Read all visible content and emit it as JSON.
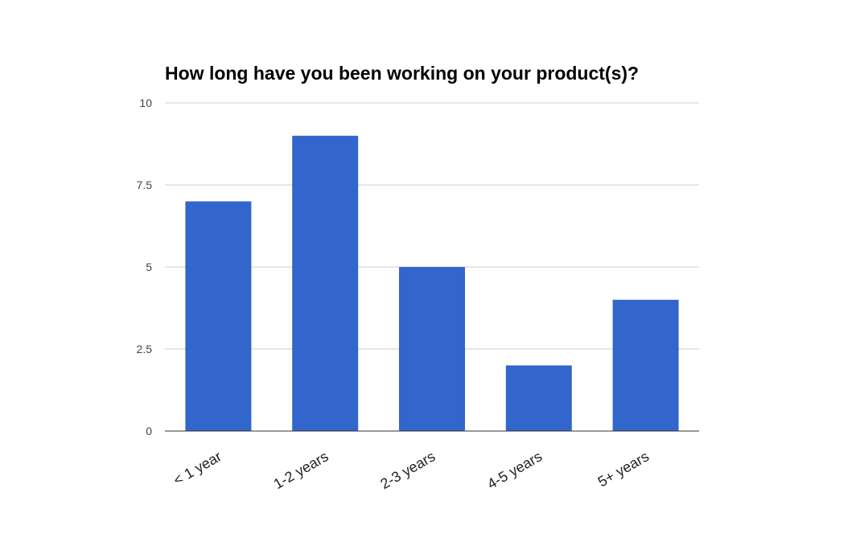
{
  "chart_data": {
    "type": "bar",
    "title": "How long have you been working on your product(s)?",
    "xlabel": "",
    "ylabel": "",
    "categories": [
      "< 1 year",
      "1-2 years",
      "2-3 years",
      "4-5 years",
      "5+ years"
    ],
    "values": [
      7,
      9,
      5,
      2,
      4
    ],
    "ylim": [
      0,
      10
    ],
    "yticks": [
      0,
      2.5,
      5,
      7.5,
      10
    ],
    "ytick_labels": [
      "0",
      "2.5",
      "5",
      "7.5",
      "10"
    ],
    "grid": true,
    "legend": "none",
    "bar_color": "#3366cc"
  }
}
